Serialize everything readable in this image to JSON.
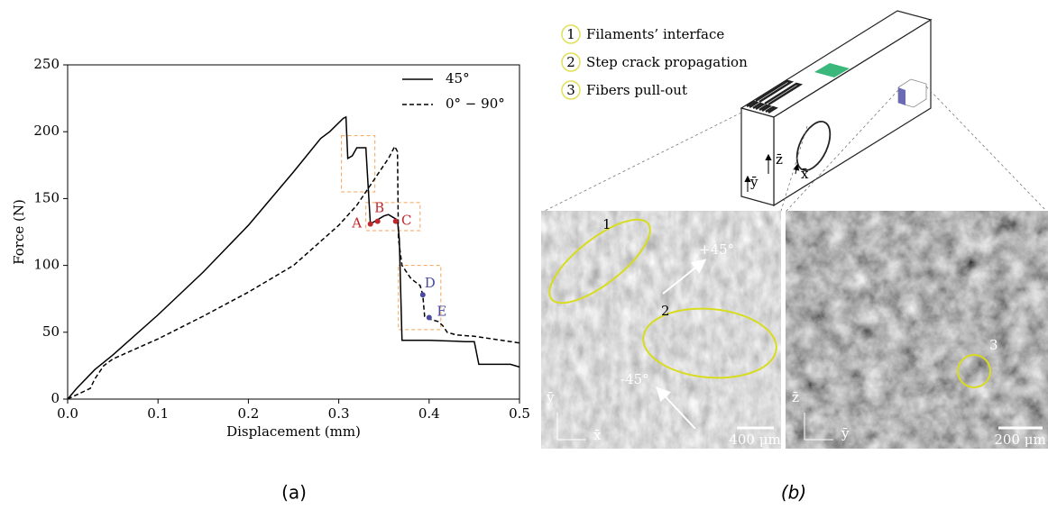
{
  "chart_data": {
    "type": "line",
    "xlabel": "Displacement (mm)",
    "ylabel": "Force (N)",
    "xlim": [
      0,
      0.5
    ],
    "ylim": [
      0,
      250
    ],
    "xticks": [
      {
        "value": 0,
        "label": "0.0"
      },
      0.1,
      0.2,
      0.3,
      0.4,
      0.5
    ],
    "yticks": [
      0,
      50,
      100,
      150,
      200,
      250
    ],
    "grid": false,
    "legend": "upper right",
    "series": [
      {
        "name": "45°",
        "color": "#000000",
        "dash": "solid",
        "x": [
          0,
          0.01,
          0.03,
          0.05,
          0.1,
          0.15,
          0.2,
          0.25,
          0.28,
          0.29,
          0.305,
          0.308,
          0.31,
          0.315,
          0.32,
          0.33,
          0.335,
          0.34,
          0.35,
          0.355,
          0.36,
          0.365,
          0.367,
          0.37,
          0.4,
          0.44,
          0.45,
          0.455,
          0.49,
          0.5
        ],
        "values": [
          0,
          8,
          22,
          33,
          63,
          95,
          130,
          170,
          195,
          200,
          210,
          211,
          180,
          182,
          188,
          188,
          131,
          133,
          137,
          138,
          136,
          134,
          120,
          44,
          44,
          43,
          43,
          26,
          26,
          24
        ]
      },
      {
        "name": "0° − 90°",
        "color": "#000000",
        "dash": "dashed",
        "x": [
          0,
          0.025,
          0.03,
          0.04,
          0.05,
          0.1,
          0.15,
          0.2,
          0.25,
          0.3,
          0.32,
          0.34,
          0.355,
          0.362,
          0.365,
          0.366,
          0.37,
          0.38,
          0.39,
          0.393,
          0.395,
          0.4,
          0.41,
          0.415,
          0.42,
          0.43,
          0.45,
          0.5
        ],
        "values": [
          0,
          8,
          15,
          25,
          30,
          45,
          62,
          80,
          100,
          130,
          145,
          165,
          180,
          189,
          185,
          120,
          100,
          90,
          85,
          78,
          62,
          60,
          58,
          55,
          50,
          48,
          47,
          42
        ]
      }
    ],
    "annotations": [
      {
        "label": "A",
        "x": 0.335,
        "y": 131,
        "color": "#c0272d"
      },
      {
        "label": "B",
        "x": 0.343,
        "y": 133,
        "color": "#c0272d"
      },
      {
        "label": "C",
        "x": 0.363,
        "y": 133,
        "color": "#c0272d"
      },
      {
        "label": "D",
        "x": 0.393,
        "y": 78,
        "color": "#4a4a9e"
      },
      {
        "label": "E",
        "x": 0.4,
        "y": 61,
        "color": "#4a4a9e"
      }
    ],
    "highlight_boxes": [
      {
        "x": [
          0.303,
          0.34
        ],
        "y": [
          155,
          197
        ],
        "color": "#f5a35a"
      },
      {
        "x": [
          0.33,
          0.39
        ],
        "y": [
          126,
          147
        ],
        "color": "#f5a35a"
      },
      {
        "x": [
          0.366,
          0.413
        ],
        "y": [
          52,
          100
        ],
        "color": "#f5a35a"
      }
    ],
    "panel_label": "(a)"
  },
  "panel_b": {
    "panel_label": "(b)",
    "legend": [
      {
        "number": "1",
        "text": "Filaments’ interface"
      },
      {
        "number": "2",
        "text": "Step crack propagation"
      },
      {
        "number": "3",
        "text": "Fibers pull-out"
      }
    ],
    "block_axes": [
      "z̄",
      "x̄",
      "ȳ"
    ],
    "left_image": {
      "markers": [
        "1",
        "2"
      ],
      "angles": [
        "+45°",
        "-45°"
      ],
      "axes": [
        "ȳ",
        "x̄"
      ],
      "scale": "400 μm"
    },
    "right_image": {
      "markers": [
        "3"
      ],
      "axes": [
        "z̄",
        "ȳ"
      ],
      "scale": "200 μm"
    }
  }
}
